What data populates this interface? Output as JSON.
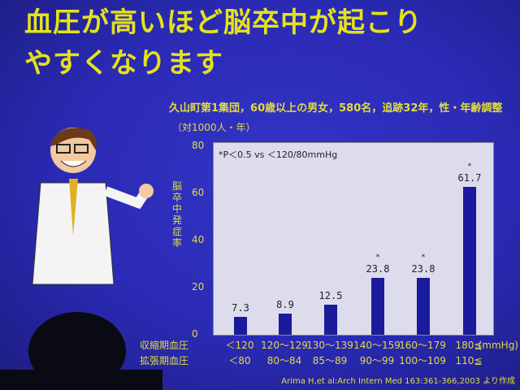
{
  "slide": {
    "title_line1": "血圧が高いほど脳卒中が起こり",
    "title_line2": "やすくなります",
    "study": "久山町第1集団，60歳以上の男女，580名，追跡32年，性・年齢調整",
    "unit": "（対1000人・年）",
    "citation": "Arima H,et al:Arch Intern Med 163:361-366,2003 より作成",
    "colors": {
      "background": "#2a2ab4",
      "title": "#e4e21a",
      "bar": "#1a1a9c",
      "plot": "#dcdcec"
    }
  },
  "chart_data": {
    "type": "bar",
    "ylabel": "脳卒中発症率",
    "ylim": [
      0,
      80
    ],
    "yticks": [
      "0",
      "20",
      "40",
      "60",
      "80"
    ],
    "note": "*P＜0.5 vs ＜120/80mmHg",
    "row_labels": [
      "収縮期血圧",
      "拡張期血圧"
    ],
    "x_unit": "(mmHg)",
    "categories": [
      "＜120",
      "120～129",
      "130～139",
      "140～159",
      "160～179",
      "180≦"
    ],
    "categories_diastolic": [
      "＜80",
      "80～84",
      "85～89",
      "90～99",
      "100～109",
      "110≦"
    ],
    "values": [
      7.3,
      8.9,
      12.5,
      23.8,
      23.8,
      61.7
    ],
    "labels": [
      "7.3",
      "8.9",
      "12.5",
      "23.8",
      "23.8",
      "61.7"
    ],
    "significant": [
      false,
      false,
      false,
      true,
      true,
      true
    ],
    "star": "*"
  }
}
